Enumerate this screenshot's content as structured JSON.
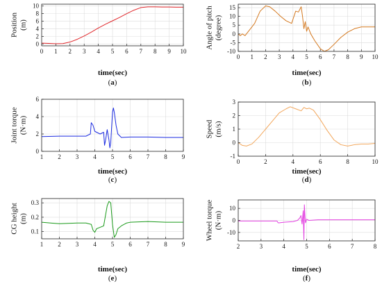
{
  "chart_data": [
    {
      "type": "line",
      "caption": "(a)",
      "xlabel": "time(sec)",
      "ylabel_lines": [
        "Position",
        "(m)"
      ],
      "xlim": [
        0,
        10
      ],
      "ylim": [
        -0.5,
        10.5
      ],
      "xticks": [
        0,
        1,
        2,
        3,
        4,
        5,
        6,
        7,
        8,
        9,
        10
      ],
      "yticks": [
        0,
        2,
        4,
        6,
        8,
        10
      ],
      "grid": true,
      "color": "#e0262a",
      "series": [
        {
          "x": [
            0,
            0.5,
            1,
            1.5,
            2,
            2.5,
            3,
            3.5,
            4,
            4.5,
            5,
            5.5,
            6,
            6.5,
            7,
            7.5,
            8,
            8.5,
            9,
            9.5,
            10
          ],
          "y": [
            0.2,
            0.15,
            0.05,
            0.1,
            0.5,
            1.2,
            2.1,
            3.1,
            4.2,
            5.2,
            6.1,
            7.0,
            8.0,
            8.9,
            9.6,
            9.8,
            9.8,
            9.75,
            9.75,
            9.7,
            9.7
          ]
        }
      ]
    },
    {
      "type": "line",
      "caption": "(b)",
      "xlabel": "time(sec)",
      "ylabel_lines": [
        "Angle of pitch",
        "(degree)"
      ],
      "xlim": [
        0,
        10
      ],
      "ylim": [
        -10,
        17
      ],
      "xticks": [
        0,
        1,
        2,
        3,
        4,
        5,
        6,
        7,
        8,
        9,
        10
      ],
      "yticks": [
        -10,
        -5,
        0,
        5,
        10,
        15
      ],
      "grid": true,
      "color": "#d4781e",
      "series": [
        {
          "x": [
            0,
            0.15,
            0.3,
            0.5,
            0.8,
            1.2,
            1.6,
            2.0,
            2.3,
            2.7,
            3.1,
            3.5,
            3.9,
            4.2,
            4.4,
            4.6,
            4.7,
            4.8,
            4.9,
            5.0,
            5.1,
            5.3,
            5.6,
            6.0,
            6.3,
            6.6,
            7.0,
            7.5,
            8.0,
            8.5,
            9.0,
            9.5,
            10
          ],
          "y": [
            0,
            -1,
            0,
            -1,
            2,
            6,
            13,
            16,
            15.5,
            13,
            10,
            7.5,
            6,
            13,
            12.5,
            15.5,
            10,
            3,
            7,
            1.5,
            4,
            0,
            -4,
            -8.5,
            -10,
            -9,
            -6,
            -2,
            1,
            3,
            4,
            4,
            4
          ]
        }
      ]
    },
    {
      "type": "line",
      "caption": "(c)",
      "xlabel": "time(sec)",
      "ylabel_lines": [
        "Joint torque",
        "(N·m)"
      ],
      "xlim": [
        1,
        9
      ],
      "ylim": [
        0,
        6
      ],
      "xticks": [
        1,
        2,
        3,
        4,
        5,
        6,
        7,
        8,
        9
      ],
      "yticks": [
        0,
        2,
        4,
        6
      ],
      "grid": true,
      "color": "#1a2ae0",
      "series": [
        {
          "x": [
            1,
            2,
            3,
            3.5,
            3.75,
            3.8,
            3.9,
            4.0,
            4.3,
            4.5,
            4.55,
            4.6,
            4.7,
            4.8,
            4.85,
            4.9,
            4.95,
            5.0,
            5.05,
            5.1,
            5.2,
            5.3,
            5.5,
            6,
            7,
            8,
            9
          ],
          "y": [
            1.7,
            1.75,
            1.75,
            1.75,
            2.0,
            3.3,
            3.0,
            2.3,
            2.0,
            2.2,
            0.7,
            1.2,
            2.5,
            1.3,
            0.4,
            1.0,
            2.8,
            4.5,
            5.0,
            4.5,
            3.0,
            2.0,
            1.6,
            1.65,
            1.65,
            1.6,
            1.6
          ]
        }
      ]
    },
    {
      "type": "line",
      "caption": "(d)",
      "xlabel": "time(sec)",
      "ylabel_lines": [
        "Speed",
        "(m/s)"
      ],
      "xlim": [
        0,
        10
      ],
      "ylim": [
        -1,
        3
      ],
      "xticks": [
        0,
        2,
        4,
        6,
        8,
        10
      ],
      "yticks": [
        -1,
        0,
        1,
        2,
        3
      ],
      "grid": true,
      "color": "#f2a65a",
      "series": [
        {
          "x": [
            0,
            0.3,
            0.6,
            1.0,
            1.5,
            2.0,
            2.5,
            3.0,
            3.5,
            3.8,
            4.2,
            4.6,
            4.8,
            5.0,
            5.2,
            5.5,
            6.0,
            6.5,
            7.0,
            7.5,
            8.0,
            8.5,
            9.0,
            9.5,
            10
          ],
          "y": [
            0,
            -0.2,
            -0.25,
            -0.1,
            0.4,
            1.0,
            1.6,
            2.2,
            2.5,
            2.65,
            2.5,
            2.35,
            2.6,
            2.5,
            2.55,
            2.4,
            1.7,
            0.9,
            0.2,
            -0.15,
            -0.25,
            -0.15,
            -0.1,
            -0.1,
            -0.05
          ]
        }
      ]
    },
    {
      "type": "line",
      "caption": "(e)",
      "xlabel": "time(sec)",
      "ylabel_lines": [
        "CG height",
        "(m)"
      ],
      "xlim": [
        1,
        9
      ],
      "ylim": [
        0.05,
        0.33
      ],
      "xticks": [
        1,
        2,
        3,
        4,
        5,
        6,
        7,
        8,
        9
      ],
      "yticks": [
        0.1,
        0.2,
        0.3
      ],
      "grid": true,
      "color": "#1a9a1a",
      "series": [
        {
          "x": [
            1,
            1.5,
            2,
            3,
            3.5,
            3.8,
            3.9,
            4.0,
            4.1,
            4.3,
            4.5,
            4.7,
            4.8,
            4.9,
            5.0,
            5.1,
            5.2,
            5.3,
            5.5,
            5.8,
            6,
            7,
            8,
            9
          ],
          "y": [
            0.165,
            0.16,
            0.155,
            0.16,
            0.16,
            0.15,
            0.11,
            0.095,
            0.12,
            0.13,
            0.14,
            0.28,
            0.31,
            0.3,
            0.15,
            0.06,
            0.08,
            0.12,
            0.14,
            0.16,
            0.165,
            0.17,
            0.165,
            0.165
          ]
        }
      ]
    },
    {
      "type": "line",
      "caption": "(f)",
      "xlabel": "time(sec)",
      "ylabel_lines": [
        "Wheel torque",
        "(N·m)"
      ],
      "xlim": [
        2,
        8
      ],
      "ylim": [
        -17,
        17
      ],
      "xticks": [
        2,
        3,
        4,
        5,
        6,
        7,
        8
      ],
      "yticks": [
        -10,
        0,
        10
      ],
      "grid": true,
      "color": "#e23ee0",
      "series": [
        {
          "x": [
            2,
            3,
            3.7,
            3.75,
            3.8,
            4.0,
            4.4,
            4.6,
            4.7,
            4.75,
            4.8,
            4.85,
            4.88,
            4.9,
            4.93,
            4.95,
            5.0,
            5.1,
            5.5,
            6,
            7,
            8
          ],
          "y": [
            -0.5,
            -0.5,
            -0.5,
            -2,
            -2,
            -1.5,
            -1,
            0,
            2,
            4,
            -3,
            8,
            -16,
            13,
            3,
            -2,
            1,
            0,
            0.5,
            0.5,
            0.5,
            0.5
          ]
        }
      ]
    }
  ]
}
